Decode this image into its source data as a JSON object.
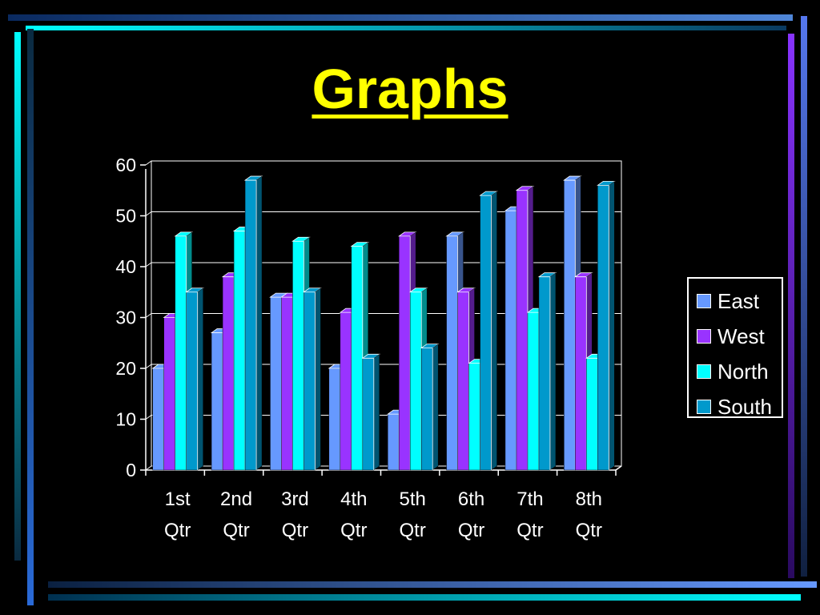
{
  "slide": {
    "title": "Graphs"
  },
  "chart_data": {
    "type": "bar",
    "subtype": "clustered-3d",
    "categories": [
      "1st\nQtr",
      "2nd\nQtr",
      "3rd\nQtr",
      "4th\nQtr",
      "5th\nQtr",
      "6th\nQtr",
      "7th\nQtr",
      "8th\nQtr"
    ],
    "category_lines": [
      [
        "1st",
        "Qtr"
      ],
      [
        "2nd",
        "Qtr"
      ],
      [
        "3rd",
        "Qtr"
      ],
      [
        "4th",
        "Qtr"
      ],
      [
        "5th",
        "Qtr"
      ],
      [
        "6th",
        "Qtr"
      ],
      [
        "7th",
        "Qtr"
      ],
      [
        "8th",
        "Qtr"
      ]
    ],
    "series": [
      {
        "name": "East",
        "color": "#6699ff",
        "values": [
          20,
          27,
          34,
          20,
          11,
          46,
          51,
          57
        ]
      },
      {
        "name": "West",
        "color": "#9933ff",
        "values": [
          30,
          38,
          34,
          31,
          46,
          35,
          55,
          38
        ]
      },
      {
        "name": "North",
        "color": "#00ffff",
        "values": [
          46,
          47,
          45,
          44,
          35,
          21,
          31,
          22
        ]
      },
      {
        "name": "South",
        "color": "#0099cc",
        "values": [
          35,
          57,
          35,
          22,
          24,
          54,
          38,
          56
        ]
      }
    ],
    "ylim": [
      0,
      60
    ],
    "yticks": [
      0,
      10,
      20,
      30,
      40,
      50,
      60
    ],
    "grid": true,
    "legend_position": "right",
    "background": "#000000",
    "text_color": "#ffffff"
  }
}
